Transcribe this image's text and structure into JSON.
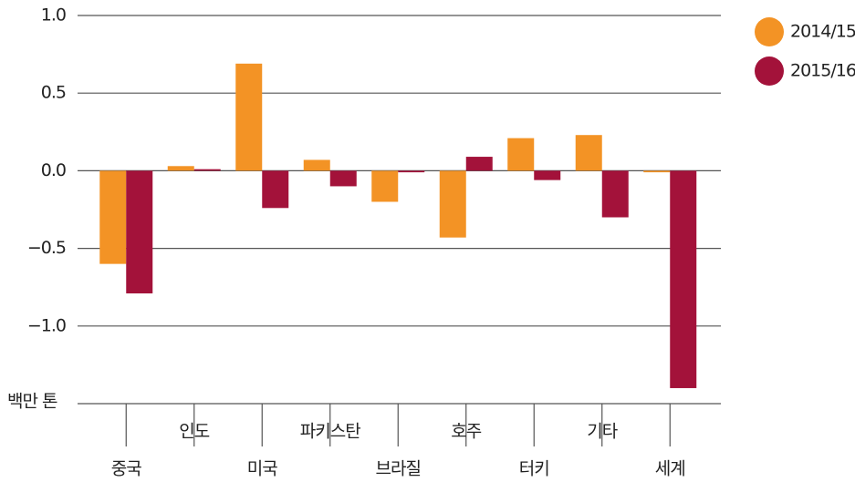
{
  "chart_data": {
    "type": "bar",
    "y_unit_label": "백만 톤",
    "categories": [
      "중국",
      "인도",
      "미국",
      "파키스탄",
      "브라질",
      "호주",
      "터키",
      "기타",
      "세계"
    ],
    "series": [
      {
        "name": "2014/15",
        "color": "#f39325",
        "values": [
          -0.6,
          0.03,
          0.69,
          0.07,
          -0.2,
          -0.43,
          0.21,
          0.23,
          -0.01
        ]
      },
      {
        "name": "2015/16",
        "color": "#a3123a",
        "values": [
          -0.79,
          0.01,
          -0.24,
          -0.1,
          -0.01,
          0.09,
          -0.06,
          -0.3,
          -1.4
        ]
      }
    ],
    "ylim": [
      -1.5,
      1.0
    ],
    "yticks": [
      {
        "value": 1.0,
        "label": "1.0"
      },
      {
        "value": 0.5,
        "label": "0.5"
      },
      {
        "value": 0,
        "label": "0.0"
      },
      {
        "value": -0.5,
        "label": "−0.5"
      },
      {
        "value": -1.0,
        "label": "−1.0"
      }
    ],
    "grid": true,
    "legend": "right"
  }
}
